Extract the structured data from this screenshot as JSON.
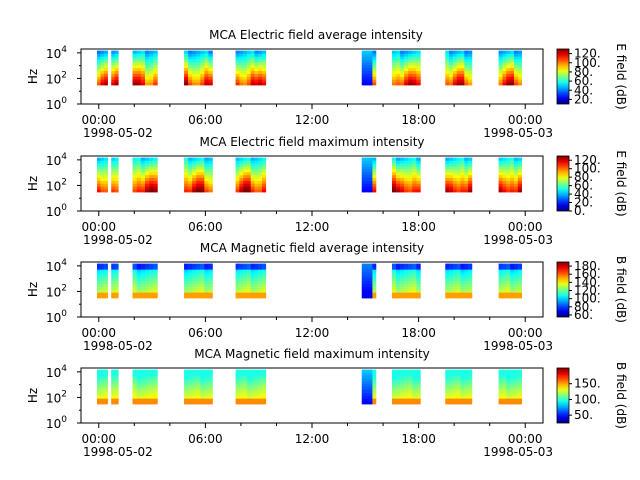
{
  "chart_data": [
    {
      "type": "heatmap",
      "title": "MCA  Electric field average intensity",
      "ylabel": "Hz",
      "yscale": "log",
      "ylim": [
        1,
        20000
      ],
      "y_ticks": [
        {
          "base": "10",
          "exp": "0"
        },
        {
          "base": "10",
          "exp": "2"
        },
        {
          "base": "10",
          "exp": "4"
        }
      ],
      "x_ticks": [
        "00:00",
        "06:00",
        "12:00",
        "18:00",
        "00:00"
      ],
      "x_tick_hours": [
        0,
        6,
        12,
        18,
        24
      ],
      "xlim_hours": [
        -1,
        25
      ],
      "date_start": "1998-05-02",
      "date_end": "1998-05-03",
      "colorbar": {
        "label": "E field (dB)",
        "range": [
          10,
          130
        ],
        "ticks": [
          "120.",
          "100.",
          "80.",
          "60.",
          "40.",
          "20."
        ],
        "tick_values": [
          120,
          100,
          80,
          60,
          40,
          20
        ]
      },
      "profile": "e_avg"
    },
    {
      "type": "heatmap",
      "title": "MCA  Electric field maximum intensity",
      "ylabel": "Hz",
      "yscale": "log",
      "ylim": [
        1,
        20000
      ],
      "y_ticks": [
        {
          "base": "10",
          "exp": "0"
        },
        {
          "base": "10",
          "exp": "2"
        },
        {
          "base": "10",
          "exp": "4"
        }
      ],
      "x_ticks": [
        "00:00",
        "06:00",
        "12:00",
        "18:00",
        "00:00"
      ],
      "x_tick_hours": [
        0,
        6,
        12,
        18,
        24
      ],
      "xlim_hours": [
        -1,
        25
      ],
      "date_start": "1998-05-02",
      "date_end": "1998-05-03",
      "colorbar": {
        "label": "E field (dB)",
        "range": [
          0,
          130
        ],
        "ticks": [
          "120.",
          "100.",
          "80.",
          "60.",
          "40.",
          "20.",
          "0."
        ],
        "tick_values": [
          120,
          100,
          80,
          60,
          40,
          20,
          0
        ]
      },
      "profile": "e_max"
    },
    {
      "type": "heatmap",
      "title": "MCA  Magnetic field average intensity",
      "ylabel": "Hz",
      "yscale": "log",
      "ylim": [
        1,
        20000
      ],
      "y_ticks": [
        {
          "base": "10",
          "exp": "0"
        },
        {
          "base": "10",
          "exp": "2"
        },
        {
          "base": "10",
          "exp": "4"
        }
      ],
      "x_ticks": [
        "00:00",
        "06:00",
        "12:00",
        "18:00",
        "00:00"
      ],
      "x_tick_hours": [
        0,
        6,
        12,
        18,
        24
      ],
      "xlim_hours": [
        -1,
        25
      ],
      "date_start": "1998-05-02",
      "date_end": "1998-05-03",
      "colorbar": {
        "label": "B field (dB)",
        "range": [
          55,
          190
        ],
        "ticks": [
          "180.",
          "160.",
          "140.",
          "120.",
          "100.",
          "80.",
          "60."
        ],
        "tick_values": [
          180,
          160,
          140,
          120,
          100,
          80,
          60
        ]
      },
      "profile": "b_avg"
    },
    {
      "type": "heatmap",
      "title": "MCA  Magnetic field maximum intensity",
      "ylabel": "Hz",
      "yscale": "log",
      "ylim": [
        1,
        20000
      ],
      "y_ticks": [
        {
          "base": "10",
          "exp": "0"
        },
        {
          "base": "10",
          "exp": "2"
        },
        {
          "base": "10",
          "exp": "4"
        }
      ],
      "x_ticks": [
        "00:00",
        "06:00",
        "12:00",
        "18:00",
        "00:00"
      ],
      "x_tick_hours": [
        0,
        6,
        12,
        18,
        24
      ],
      "xlim_hours": [
        -1,
        25
      ],
      "date_start": "1998-05-02",
      "date_end": "1998-05-03",
      "colorbar": {
        "label": "B field (dB)",
        "range": [
          25,
          200
        ],
        "ticks": [
          "150.",
          "100.",
          "50."
        ],
        "tick_values": [
          150,
          100,
          50
        ]
      },
      "profile": "b_max"
    }
  ],
  "data_segments_hours": [
    [
      -0.1,
      0.5
    ],
    [
      0.7,
      1.1
    ],
    [
      1.9,
      3.3
    ],
    [
      4.8,
      6.4
    ],
    [
      7.7,
      9.4
    ],
    [
      14.8,
      15.6
    ],
    [
      16.5,
      18.1
    ],
    [
      19.5,
      21.0
    ],
    [
      22.5,
      23.8
    ]
  ]
}
